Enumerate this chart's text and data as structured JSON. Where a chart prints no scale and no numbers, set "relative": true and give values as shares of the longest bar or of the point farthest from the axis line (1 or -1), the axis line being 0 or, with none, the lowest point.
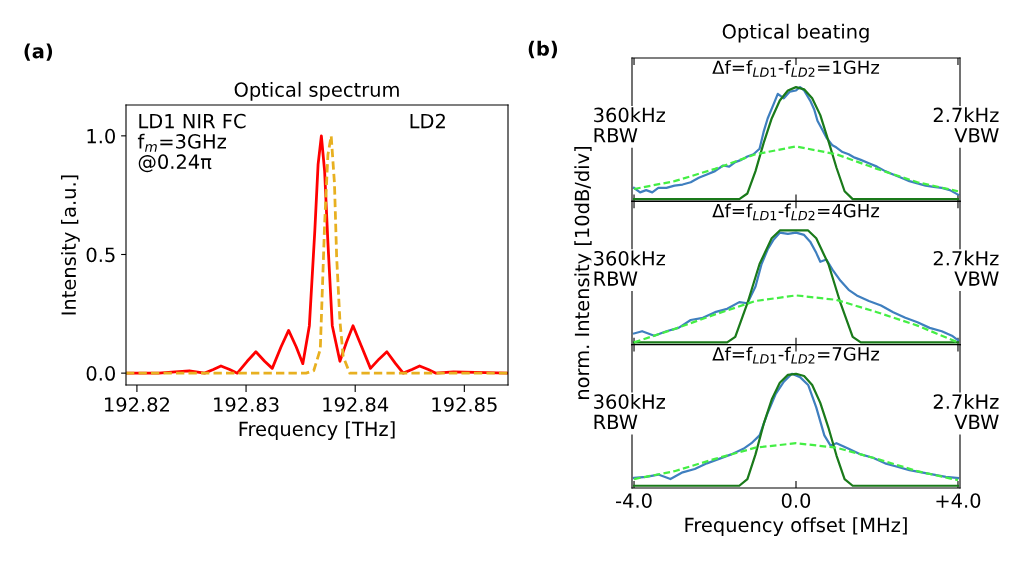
{
  "chart_data": [
    {
      "type": "line",
      "title": "Optical spectrum",
      "xlabel": "Frequency [THz]",
      "ylabel": "Intensity [a.u.]",
      "xlim": [
        192.819,
        192.854
      ],
      "xticks": [
        192.82,
        192.83,
        192.84,
        192.85
      ],
      "ylim": [
        -0.05,
        1.13
      ],
      "yticks": [
        {
          "value": 0,
          "label": "0.0"
        },
        {
          "value": 0.5,
          "label": "0.5"
        },
        {
          "value": 1,
          "label": "1.0"
        }
      ],
      "grid": false,
      "legend": false,
      "annotations": [
        "(a)",
        "LD1 NIR FC\nf$_{m}$=3GHz\n@0.24π",
        "LD2"
      ],
      "series": [
        {
          "color": "#ff0000",
          "line_style": "solid",
          "x": [
            192.819,
            192.822,
            192.8235,
            192.8248,
            192.8262,
            192.827,
            192.8277,
            192.8285,
            192.8292,
            192.8301,
            192.8309,
            192.8317,
            192.8324,
            192.8332,
            192.8339,
            192.8346,
            192.8352,
            192.8358,
            192.8363,
            192.8366,
            192.8369,
            192.8372,
            192.8375,
            192.8379,
            192.8386,
            192.8392,
            192.8398,
            192.8406,
            192.8414,
            192.8422,
            192.8429,
            192.8437,
            192.8444,
            192.8452,
            192.8459,
            192.8467,
            192.8474,
            192.849,
            192.854
          ],
          "values": [
            0,
            0,
            0.005,
            0.01,
            0,
            0.015,
            0.03,
            0.015,
            0,
            0.05,
            0.09,
            0.05,
            0.02,
            0.11,
            0.18,
            0.11,
            0.04,
            0.2,
            0.6,
            0.88,
            1.0,
            0.85,
            0.55,
            0.2,
            0.05,
            0.13,
            0.2,
            0.11,
            0.02,
            0.06,
            0.09,
            0.04,
            0,
            0.015,
            0.03,
            0.015,
            0,
            0.005,
            0
          ]
        },
        {
          "color": "#e8b020",
          "line_style": "dashed",
          "x": [
            192.819,
            192.8355,
            192.8362,
            192.8368,
            192.8372,
            192.8375,
            192.8378,
            192.8381,
            192.8383,
            192.8386,
            192.8389,
            192.8395,
            192.854
          ],
          "values": [
            0,
            0,
            0.01,
            0.1,
            0.63,
            0.92,
            1.0,
            0.8,
            0.49,
            0.22,
            0.07,
            0,
            0
          ]
        }
      ]
    },
    {
      "type": "line",
      "relative": true,
      "title": "Optical beating",
      "subtitle": "Δf=f$_{LD1}$-f$_{LD2}$=1GHz",
      "xlim": [
        -4.05,
        4.05
      ],
      "xticks": [
        {
          "value": -4,
          "label": null
        },
        {
          "value": 0,
          "label": null
        },
        {
          "value": 4,
          "label": null
        }
      ],
      "tick_labels": false,
      "grid": false,
      "legend": false,
      "annotations": [
        "(b)",
        "360kHz\nRBW",
        "2.7kHz\nVBW"
      ],
      "series": [
        {
          "color": "#3f7fbf",
          "line_style": "solid",
          "x": [
            -4.0,
            -3.85,
            -3.7,
            -3.55,
            -3.4,
            -3.2,
            -3.0,
            -2.8,
            -2.6,
            -2.4,
            -2.2,
            -2.0,
            -1.8,
            -1.65,
            -1.5,
            -1.35,
            -1.2,
            -1.05,
            -0.9,
            -0.8,
            -0.7,
            -0.55,
            -0.45,
            -0.3,
            -0.15,
            0.0,
            0.1,
            0.2,
            0.35,
            0.45,
            0.53,
            0.65,
            0.75,
            0.9,
            1.0,
            1.15,
            1.3,
            1.45,
            1.6,
            1.8,
            2.0,
            2.2,
            2.4,
            2.6,
            2.8,
            3.0,
            3.2,
            3.4,
            3.6,
            3.8,
            4.0
          ],
          "values": [
            0.1,
            0.06,
            0.08,
            0.06,
            0.1,
            0.1,
            0.12,
            0.13,
            0.15,
            0.19,
            0.22,
            0.25,
            0.3,
            0.29,
            0.33,
            0.35,
            0.38,
            0.4,
            0.45,
            0.6,
            0.72,
            0.85,
            0.94,
            0.9,
            0.96,
            0.97,
            1.0,
            0.97,
            0.88,
            0.8,
            0.7,
            0.62,
            0.55,
            0.48,
            0.46,
            0.42,
            0.4,
            0.37,
            0.35,
            0.32,
            0.29,
            0.25,
            0.22,
            0.19,
            0.16,
            0.14,
            0.12,
            0.11,
            0.1,
            0.08,
            0.04
          ]
        },
        {
          "color": "#1a7a1a",
          "line_style": "solid",
          "x": [
            -4,
            -1.4,
            -1.2,
            -1.0,
            -0.8,
            -0.6,
            -0.4,
            -0.2,
            0,
            0.2,
            0.4,
            0.6,
            0.8,
            1.0,
            1.2,
            1.4,
            4
          ],
          "values": [
            0,
            0,
            0.05,
            0.25,
            0.5,
            0.72,
            0.88,
            0.97,
            1.0,
            0.98,
            0.9,
            0.75,
            0.52,
            0.28,
            0.07,
            0,
            0
          ]
        },
        {
          "color": "#44ee44",
          "line_style": "dashed",
          "x": [
            -4,
            -3,
            -2,
            -1,
            0,
            1,
            2,
            3,
            4
          ],
          "values": [
            0.09,
            0.16,
            0.27,
            0.4,
            0.47,
            0.4,
            0.27,
            0.15,
            0.07
          ]
        }
      ]
    },
    {
      "type": "line",
      "relative": true,
      "subtitle": "Δf=f$_{LD1}$-f$_{LD2}$=4GHz",
      "ylabel": "norm. Intensity [10dB/div]",
      "xlim": [
        -4.05,
        4.05
      ],
      "xticks": [
        {
          "value": -4,
          "label": null
        },
        {
          "value": 0,
          "label": null
        },
        {
          "value": 4,
          "label": null
        }
      ],
      "tick_labels": false,
      "grid": false,
      "legend": false,
      "annotations": [
        "360kHz\nRBW",
        "2.7kHz\nVBW"
      ],
      "series": [
        {
          "color": "#3f7fbf",
          "line_style": "solid",
          "x": [
            -4.0,
            -3.8,
            -3.5,
            -3.2,
            -2.9,
            -2.6,
            -2.3,
            -2.0,
            -1.7,
            -1.4,
            -1.2,
            -1.0,
            -0.85,
            -0.7,
            -0.55,
            -0.4,
            -0.2,
            0.0,
            0.2,
            0.35,
            0.5,
            0.6,
            0.75,
            0.9,
            1.1,
            1.3,
            1.5,
            1.8,
            2.1,
            2.4,
            2.7,
            3.0,
            3.3,
            3.6,
            3.85,
            4.0
          ],
          "values": [
            0.08,
            0.1,
            0.06,
            0.1,
            0.13,
            0.2,
            0.22,
            0.27,
            0.3,
            0.36,
            0.35,
            0.5,
            0.7,
            0.83,
            0.92,
            0.98,
            0.97,
            0.98,
            0.96,
            0.9,
            0.8,
            0.72,
            0.74,
            0.65,
            0.55,
            0.47,
            0.42,
            0.37,
            0.33,
            0.27,
            0.22,
            0.18,
            0.13,
            0.1,
            0.06,
            0.02
          ]
        },
        {
          "color": "#1a7a1a",
          "line_style": "solid",
          "x": [
            -4,
            -1.7,
            -1.5,
            -1.2,
            -0.9,
            -0.6,
            -0.4,
            0.3,
            0.5,
            0.8,
            1.1,
            1.4,
            1.6,
            4
          ],
          "values": [
            0,
            0,
            0.05,
            0.35,
            0.7,
            0.93,
            1.0,
            1.0,
            0.93,
            0.7,
            0.35,
            0.05,
            0,
            0
          ]
        },
        {
          "color": "#44ee44",
          "line_style": "dashed",
          "x": [
            -4,
            -3,
            -2,
            -1,
            0,
            1,
            2,
            3,
            4
          ],
          "values": [
            0.0,
            0.12,
            0.25,
            0.37,
            0.42,
            0.38,
            0.27,
            0.15,
            0.0
          ]
        }
      ]
    },
    {
      "type": "line",
      "relative": true,
      "subtitle": "Δf=f$_{LD1}$-f$_{LD2}$=7GHz",
      "xlabel": "Frequency offset [MHz]",
      "xlim": [
        -4.05,
        4.05
      ],
      "xticks": [
        {
          "value": -4,
          "label": "-4.0"
        },
        {
          "value": 0,
          "label": "0.0"
        },
        {
          "value": 4,
          "label": "+4.0"
        }
      ],
      "tick_labels": "x",
      "grid": false,
      "legend": false,
      "annotations": [
        "360kHz\nRBW",
        "2.7kHz\nVBW"
      ],
      "series": [
        {
          "color": "#3f7fbf",
          "line_style": "solid",
          "x": [
            -4.0,
            -3.7,
            -3.4,
            -3.1,
            -2.8,
            -2.5,
            -2.2,
            -1.9,
            -1.6,
            -1.3,
            -1.1,
            -0.9,
            -0.7,
            -0.5,
            -0.3,
            -0.1,
            0.1,
            0.3,
            0.5,
            0.7,
            0.85,
            1.0,
            1.3,
            1.6,
            1.9,
            2.2,
            2.5,
            2.8,
            3.1,
            3.4,
            3.7,
            4.0
          ],
          "values": [
            0.07,
            0.08,
            0.1,
            0.06,
            0.12,
            0.15,
            0.2,
            0.24,
            0.28,
            0.33,
            0.38,
            0.45,
            0.65,
            0.82,
            0.93,
            1.0,
            0.97,
            0.9,
            0.7,
            0.45,
            0.36,
            0.38,
            0.33,
            0.28,
            0.25,
            0.2,
            0.17,
            0.14,
            0.12,
            0.1,
            0.08,
            0.07
          ]
        },
        {
          "color": "#1a7a1a",
          "line_style": "solid",
          "x": [
            -4,
            -1.4,
            -1.2,
            -1.0,
            -0.8,
            -0.6,
            -0.4,
            -0.2,
            0,
            0.2,
            0.4,
            0.6,
            0.8,
            1.0,
            1.2,
            1.4,
            4
          ],
          "values": [
            0,
            0,
            0.06,
            0.28,
            0.55,
            0.77,
            0.92,
            0.99,
            1.0,
            0.98,
            0.9,
            0.74,
            0.52,
            0.27,
            0.06,
            0,
            0
          ]
        },
        {
          "color": "#44ee44",
          "line_style": "dashed",
          "x": [
            -4,
            -3,
            -2,
            -1,
            0,
            1,
            2,
            3,
            4
          ],
          "values": [
            0.06,
            0.13,
            0.24,
            0.34,
            0.38,
            0.34,
            0.24,
            0.13,
            0.05
          ]
        }
      ]
    }
  ]
}
